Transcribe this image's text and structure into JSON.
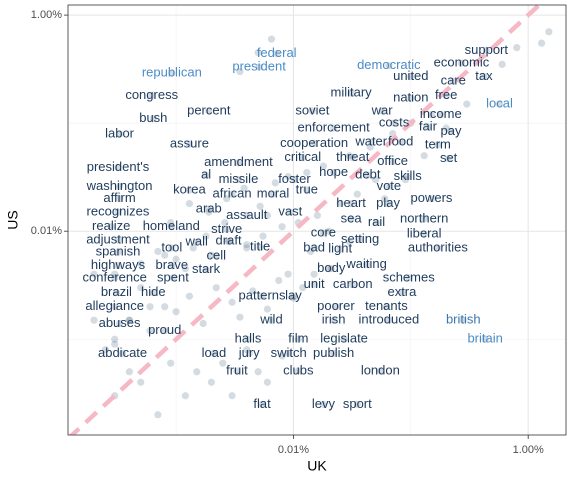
{
  "chart_data": {
    "type": "scatter",
    "xlabel": "UK",
    "ylabel": "US",
    "xscale": "log",
    "yscale": "log",
    "xlim": [
      0.00012,
      2.1
    ],
    "ylim": [
      0.00013,
      1.24
    ],
    "xticks": [
      {
        "value": 0.01,
        "label": "0.01%"
      },
      {
        "value": 1,
        "label": "1.00%"
      }
    ],
    "yticks": [
      {
        "value": 0.01,
        "label": "0.01%"
      },
      {
        "value": 1,
        "label": "1.00%"
      }
    ],
    "grid": true,
    "point_color": "#3b5a78",
    "point_opacity": 0.22,
    "abline": {
      "slope": 1,
      "intercept": 0,
      "color": "#f7b8c6",
      "dashed": true
    },
    "words": {
      "labels": [
        "support",
        "economic",
        "federal",
        "president",
        "democratic",
        "republican",
        "united",
        "care",
        "tax",
        "nation",
        "free",
        "military",
        "congress",
        "local",
        "percent",
        "soviet",
        "war",
        "income",
        "bush",
        "enforcement",
        "costs",
        "fair",
        "pay",
        "labor",
        "assure",
        "cooperation",
        "water",
        "food",
        "term",
        "critical",
        "threat",
        "office",
        "set",
        "president's",
        "amendment",
        "hope",
        "debt",
        "skills",
        "al",
        "missile",
        "foster",
        "washington",
        "korea",
        "true",
        "vote",
        "african",
        "moral",
        "affirm",
        "heart",
        "play",
        "powers",
        "arab",
        "recognizes",
        "assault",
        "vast",
        "sea",
        "rail",
        "northern",
        "realize",
        "homeland",
        "strive",
        "core",
        "setting",
        "liberal",
        "adjustment",
        "wall",
        "draft",
        "tool",
        "title",
        "bad",
        "light",
        "authorities",
        "spanish",
        "cell",
        "highways",
        "brave",
        "waiting",
        "body",
        "stark",
        "conference",
        "spent",
        "schemes",
        "unit",
        "carbon",
        "extra",
        "lay",
        "brazil",
        "hide",
        "patterns",
        "poorer",
        "tenants",
        "allegiance",
        "abuses",
        "proud",
        "wild",
        "irish",
        "introduced",
        "british",
        "britain",
        "halls",
        "film",
        "legislate",
        "abdicate",
        "load",
        "jury",
        "switch",
        "publish",
        "fruit",
        "clubs",
        "london",
        "flat",
        "levy",
        "sport"
      ],
      "x": [
        0.44,
        0.27,
        0.0072,
        0.0051,
        0.065,
        0.00092,
        0.1,
        0.23,
        0.42,
        0.1,
        0.2,
        0.031,
        0.00062,
        0.57,
        0.0019,
        0.0145,
        0.057,
        0.18,
        0.00064,
        0.022,
        0.072,
        0.14,
        0.22,
        0.00033,
        0.0013,
        0.015,
        0.046,
        0.082,
        0.17,
        0.012,
        0.032,
        0.07,
        0.21,
        0.00032,
        0.0034,
        0.022,
        0.043,
        0.094,
        0.0018,
        0.0034,
        0.0102,
        0.00033,
        0.0013,
        0.013,
        0.065,
        0.003,
        0.0067,
        0.00033,
        0.031,
        0.064,
        0.15,
        0.0019,
        0.00032,
        0.004,
        0.0094,
        0.031,
        0.051,
        0.13,
        0.00028,
        0.00091,
        0.0027,
        0.018,
        0.037,
        0.13,
        0.00032,
        0.0015,
        0.0028,
        0.00092,
        0.0052,
        0.015,
        0.025,
        0.17,
        0.00032,
        0.0022,
        0.00032,
        0.00092,
        0.042,
        0.021,
        0.0018,
        0.0003,
        0.00094,
        0.096,
        0.015,
        0.032,
        0.084,
        0.01,
        0.00031,
        0.00064,
        0.0054,
        0.023,
        0.062,
        0.0003,
        0.00033,
        0.0008,
        0.0065,
        0.022,
        0.065,
        0.28,
        0.43,
        0.0041,
        0.011,
        0.027,
        0.00035,
        0.0021,
        0.0042,
        0.0091,
        0.022,
        0.0033,
        0.011,
        0.055,
        0.0054,
        0.018,
        0.035
      ],
      "y": [
        0.47,
        0.36,
        0.44,
        0.33,
        0.34,
        0.29,
        0.27,
        0.245,
        0.27,
        0.17,
        0.18,
        0.19,
        0.18,
        0.15,
        0.13,
        0.13,
        0.13,
        0.12,
        0.11,
        0.09,
        0.1,
        0.092,
        0.084,
        0.079,
        0.064,
        0.065,
        0.067,
        0.067,
        0.063,
        0.048,
        0.048,
        0.044,
        0.047,
        0.039,
        0.043,
        0.035,
        0.033,
        0.032,
        0.033,
        0.03,
        0.03,
        0.026,
        0.024,
        0.024,
        0.026,
        0.022,
        0.022,
        0.02,
        0.018,
        0.018,
        0.02,
        0.016,
        0.015,
        0.014,
        0.015,
        0.013,
        0.012,
        0.013,
        0.011,
        0.011,
        0.0104,
        0.0096,
        0.0084,
        0.0094,
        0.0083,
        0.0079,
        0.0081,
        0.007,
        0.0071,
        0.007,
        0.0068,
        0.007,
        0.0064,
        0.0059,
        0.0048,
        0.0048,
        0.0049,
        0.0045,
        0.0044,
        0.0037,
        0.0037,
        0.0037,
        0.0032,
        0.0032,
        0.0027,
        0.0025,
        0.0027,
        0.0027,
        0.0025,
        0.002,
        0.002,
        0.002,
        0.0014,
        0.0012,
        0.0015,
        0.0015,
        0.0015,
        0.0015,
        0.001,
        0.001,
        0.001,
        0.001,
        0.00074,
        0.00074,
        0.00074,
        0.00074,
        0.00074,
        0.00051,
        0.00051,
        0.00051,
        0.00025,
        0.00025,
        0.00025
      ],
      "colors": [
        "#1f3b5c",
        "#1f3b5c",
        "#4a8cc6",
        "#4a8cc6",
        "#4a8cc6",
        "#4a8cc6",
        "#1f3b5c",
        "#1f3b5c",
        "#1f3b5c",
        "#1f3b5c",
        "#1f3b5c",
        "#1f3b5c",
        "#1f3b5c",
        "#4a8cc6",
        "#1f3b5c",
        "#1f3b5c",
        "#1f3b5c",
        "#1f3b5c",
        "#1f3b5c",
        "#1f3b5c",
        "#1f3b5c",
        "#1f3b5c",
        "#1f3b5c",
        "#1f3b5c",
        "#1f3b5c",
        "#1f3b5c",
        "#1f3b5c",
        "#1f3b5c",
        "#1f3b5c",
        "#1f3b5c",
        "#1f3b5c",
        "#1f3b5c",
        "#1f3b5c",
        "#1f3b5c",
        "#1f3b5c",
        "#1f3b5c",
        "#1f3b5c",
        "#1f3b5c",
        "#1f3b5c",
        "#1f3b5c",
        "#1f3b5c",
        "#1f3b5c",
        "#1f3b5c",
        "#1f3b5c",
        "#1f3b5c",
        "#1f3b5c",
        "#1f3b5c",
        "#1f3b5c",
        "#1f3b5c",
        "#1f3b5c",
        "#1f3b5c",
        "#1f3b5c",
        "#1f3b5c",
        "#1f3b5c",
        "#1f3b5c",
        "#1f3b5c",
        "#1f3b5c",
        "#1f3b5c",
        "#1f3b5c",
        "#1f3b5c",
        "#1f3b5c",
        "#1f3b5c",
        "#1f3b5c",
        "#1f3b5c",
        "#1f3b5c",
        "#1f3b5c",
        "#1f3b5c",
        "#1f3b5c",
        "#1f3b5c",
        "#1f3b5c",
        "#1f3b5c",
        "#1f3b5c",
        "#1f3b5c",
        "#1f3b5c",
        "#1f3b5c",
        "#1f3b5c",
        "#1f3b5c",
        "#1f3b5c",
        "#1f3b5c",
        "#1f3b5c",
        "#1f3b5c",
        "#1f3b5c",
        "#1f3b5c",
        "#1f3b5c",
        "#1f3b5c",
        "#1f3b5c",
        "#1f3b5c",
        "#1f3b5c",
        "#1f3b5c",
        "#1f3b5c",
        "#1f3b5c",
        "#1f3b5c",
        "#1f3b5c",
        "#1f3b5c",
        "#1f3b5c",
        "#1f3b5c",
        "#1f3b5c",
        "#3a78b0",
        "#4a8cc6",
        "#1f3b5c",
        "#1f3b5c",
        "#1f3b5c",
        "#1f3b5c",
        "#1f3b5c",
        "#1f3b5c",
        "#1f3b5c",
        "#1f3b5c",
        "#1f3b5c",
        "#1f3b5c",
        "#1f3b5c",
        "#1f3b5c",
        "#1f3b5c",
        "#1f3b5c"
      ]
    },
    "points": {
      "x": [
        0.0003,
        0.0004,
        0.0005,
        0.0007,
        0.0009,
        0.0012,
        0.0015,
        0.002,
        0.0025,
        0.003,
        0.004,
        0.005,
        0.006,
        0.008,
        0.0003,
        0.0004,
        0.0006,
        0.0008,
        0.001,
        0.0013,
        0.0017,
        0.0022,
        0.003,
        0.0035,
        0.0045,
        0.006,
        0.0075,
        0.01,
        0.012,
        0.015,
        0.02,
        0.0003,
        0.0005,
        0.0007,
        0.001,
        0.0014,
        0.002,
        0.0028,
        0.004,
        0.0055,
        0.008,
        0.011,
        0.016,
        0.025,
        0.035,
        0.05,
        0.0004,
        0.0006,
        0.0009,
        0.0013,
        0.0019,
        0.0027,
        0.0038,
        0.0052,
        0.007,
        0.009,
        0.013,
        0.018,
        0.03,
        0.045,
        0.07,
        0.1,
        0.15,
        0.0003,
        0.0005,
        0.0008,
        0.0012,
        0.0018,
        0.0026,
        0.004,
        0.006,
        0.009,
        0.014,
        0.02,
        0.03,
        0.06,
        0.09,
        0.13,
        0.2,
        0.3,
        1.5,
        1.3,
        0.8,
        0.6,
        0.0002,
        0.00025,
        0.0002,
        0.0035,
        0.005,
        0.0065
      ],
      "y": [
        0.0003,
        0.0005,
        0.0004,
        0.0002,
        0.0006,
        0.0003,
        0.0005,
        0.0004,
        0.0006,
        0.0003,
        0.0008,
        0.0005,
        0.0004,
        0.0007,
        0.001,
        0.0015,
        0.0012,
        0.002,
        0.0018,
        0.0025,
        0.0014,
        0.003,
        0.0022,
        0.0016,
        0.0028,
        0.0019,
        0.0035,
        0.0024,
        0.003,
        0.004,
        0.0045,
        0.004,
        0.005,
        0.0065,
        0.0055,
        0.007,
        0.006,
        0.008,
        0.0075,
        0.009,
        0.011,
        0.012,
        0.014,
        0.018,
        0.022,
        0.03,
        0.0015,
        0.002,
        0.012,
        0.018,
        0.015,
        0.02,
        0.025,
        0.017,
        0.028,
        0.032,
        0.035,
        0.04,
        0.05,
        0.06,
        0.08,
        0.1,
        0.12,
        0.0009,
        0.003,
        0.006,
        0.0045,
        0.009,
        0.012,
        0.007,
        0.014,
        0.004,
        0.0065,
        0.01,
        0.008,
        0.02,
        0.03,
        0.05,
        0.09,
        0.15,
        0.7,
        0.55,
        0.5,
        0.35,
        0.0015,
        0.0008,
        0.004,
        0.3,
        0.45,
        0.6
      ]
    }
  }
}
